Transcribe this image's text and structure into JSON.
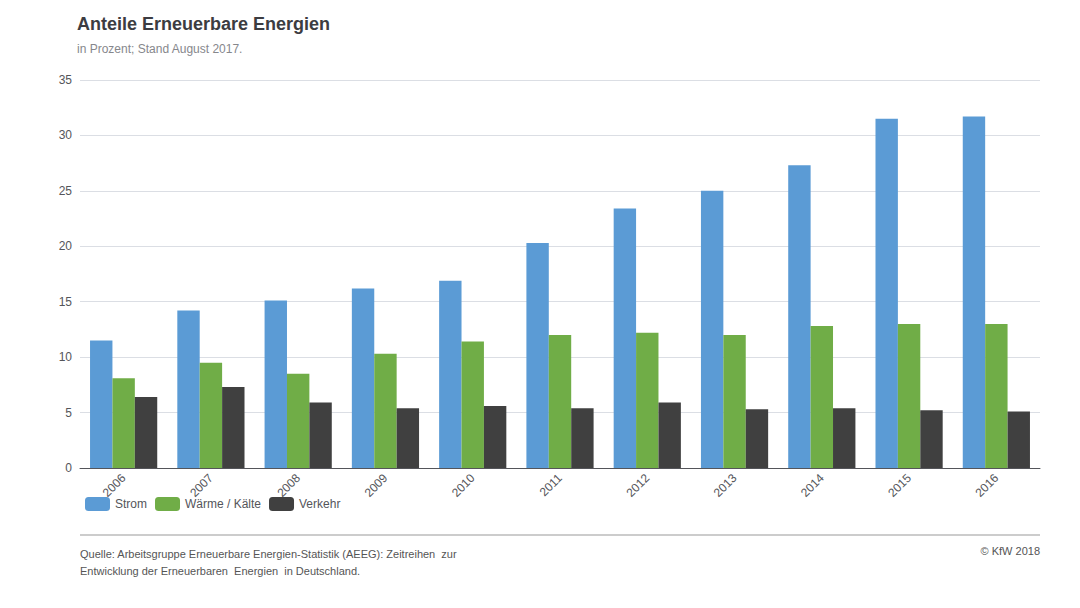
{
  "chart_data": {
    "type": "bar",
    "title": "Anteile Erneuerbare Energien",
    "subtitle": "in Prozent; Stand August 2017.",
    "categories": [
      "2006",
      "2007",
      "2008",
      "2009",
      "2010",
      "2011",
      "2012",
      "2013",
      "2014",
      "2015",
      "2016"
    ],
    "series": [
      {
        "name": "Strom",
        "color": "#5b9bd5",
        "values": [
          11.5,
          14.2,
          15.1,
          16.2,
          16.9,
          20.3,
          23.4,
          25.0,
          27.3,
          31.5,
          31.7
        ]
      },
      {
        "name": "Wärme / Kälte",
        "color": "#70ad47",
        "values": [
          8.1,
          9.5,
          8.5,
          10.3,
          11.4,
          12.0,
          12.2,
          12.0,
          12.8,
          13.0,
          13.0
        ]
      },
      {
        "name": "Verkehr",
        "color": "#404040",
        "values": [
          6.4,
          7.3,
          5.9,
          5.4,
          5.6,
          5.4,
          5.9,
          5.3,
          5.4,
          5.2,
          5.1
        ]
      }
    ],
    "ylim": [
      0,
      35
    ],
    "yticks": [
      0,
      5,
      10,
      15,
      20,
      25,
      30,
      35
    ],
    "grid": true,
    "legend": "lower left",
    "annotations": [
      "Quelle: Arbeitsgruppe Erneuerbare Energien-Statistik (AEEG): Zeitreihen  zur\nEntwicklung der Erneuerbaren  Energien  in Deutschland.",
      "© KfW 2018"
    ]
  }
}
